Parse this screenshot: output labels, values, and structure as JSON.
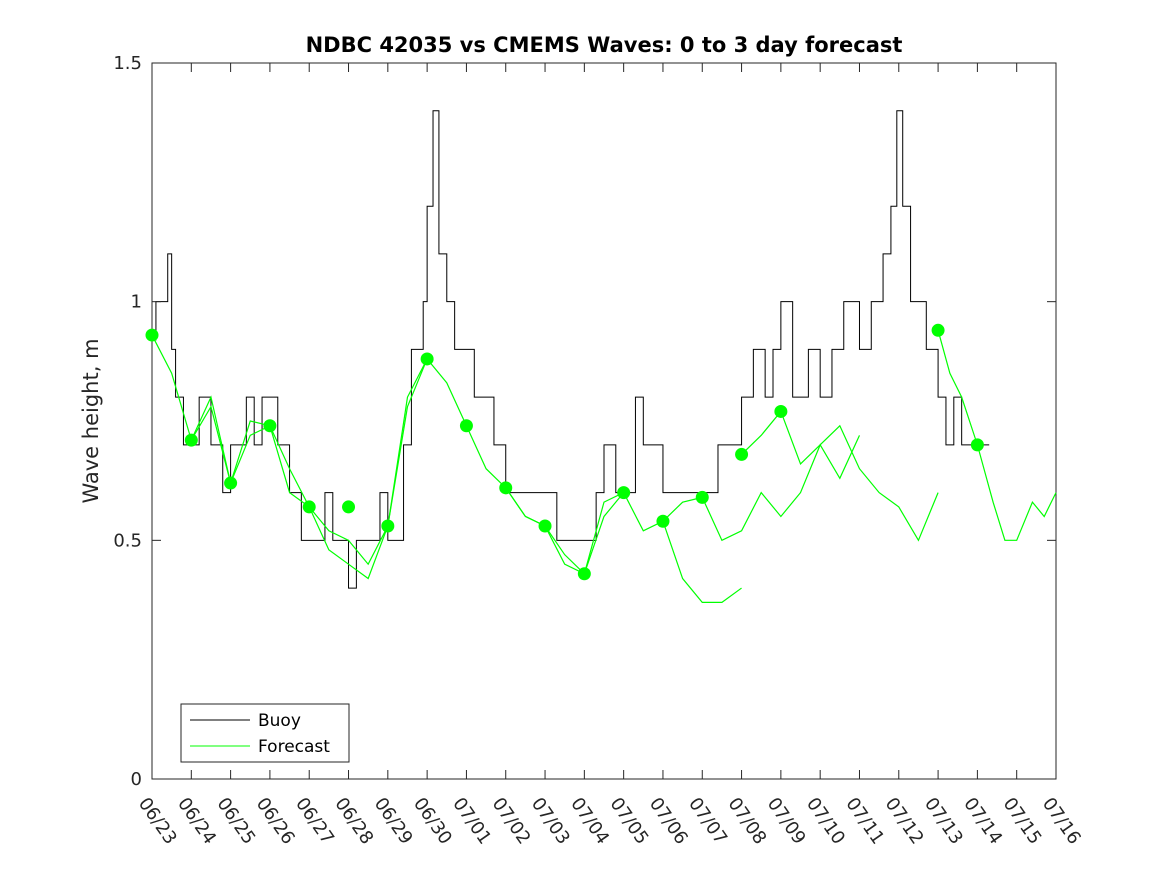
{
  "chart_data": {
    "type": "line",
    "title": "NDBC 42035 vs CMEMS Waves: 0 to 3 day forecast",
    "xlabel": "",
    "ylabel": "Wave height, m",
    "xlim": [
      "06/23",
      "07/16"
    ],
    "ylim": [
      0,
      1.5
    ],
    "yticks": [
      "0",
      "0.5",
      "1",
      "1.5"
    ],
    "xticks": [
      "06/23",
      "06/24",
      "06/25",
      "06/26",
      "06/27",
      "06/28",
      "06/29",
      "06/30",
      "07/01",
      "07/02",
      "07/03",
      "07/04",
      "07/05",
      "07/06",
      "07/07",
      "07/08",
      "07/09",
      "07/10",
      "07/11",
      "07/12",
      "07/13",
      "07/14",
      "07/15",
      "07/16"
    ],
    "grid": false,
    "legend": {
      "placement": "bottom-left",
      "entries": [
        "Buoy",
        "Forecast"
      ]
    },
    "colors": {
      "buoy": "#000000",
      "forecast": "#00ff00",
      "axes": "#262626"
    },
    "series": [
      {
        "name": "Buoy",
        "x_days_from": "06/23",
        "points": [
          [
            0,
            0.92
          ],
          [
            0.1,
            1.0
          ],
          [
            0.4,
            1.0
          ],
          [
            0.4,
            1.1
          ],
          [
            0.5,
            0.9
          ],
          [
            0.6,
            0.8
          ],
          [
            0.8,
            0.7
          ],
          [
            1.0,
            0.7
          ],
          [
            1.2,
            0.8
          ],
          [
            1.4,
            0.8
          ],
          [
            1.5,
            0.7
          ],
          [
            1.8,
            0.6
          ],
          [
            2.0,
            0.7
          ],
          [
            2.4,
            0.8
          ],
          [
            2.6,
            0.7
          ],
          [
            2.8,
            0.8
          ],
          [
            3.0,
            0.8
          ],
          [
            3.2,
            0.7
          ],
          [
            3.5,
            0.6
          ],
          [
            3.8,
            0.5
          ],
          [
            4.2,
            0.5
          ],
          [
            4.4,
            0.6
          ],
          [
            4.6,
            0.5
          ],
          [
            4.9,
            0.5
          ],
          [
            5.0,
            0.4
          ],
          [
            5.2,
            0.5
          ],
          [
            5.5,
            0.5
          ],
          [
            5.8,
            0.6
          ],
          [
            6.0,
            0.5
          ],
          [
            6.2,
            0.5
          ],
          [
            6.3,
            0.5
          ],
          [
            6.4,
            0.7
          ],
          [
            6.6,
            0.9
          ],
          [
            6.9,
            1.0
          ],
          [
            7.0,
            1.2
          ],
          [
            7.15,
            1.4
          ],
          [
            7.3,
            1.1
          ],
          [
            7.5,
            1.0
          ],
          [
            7.7,
            0.9
          ],
          [
            8.0,
            0.9
          ],
          [
            8.2,
            0.8
          ],
          [
            8.5,
            0.8
          ],
          [
            8.7,
            0.7
          ],
          [
            9.0,
            0.6
          ],
          [
            9.3,
            0.6
          ],
          [
            9.6,
            0.6
          ],
          [
            10.0,
            0.6
          ],
          [
            10.3,
            0.5
          ],
          [
            10.6,
            0.5
          ],
          [
            11.0,
            0.5
          ],
          [
            11.3,
            0.6
          ],
          [
            11.5,
            0.7
          ],
          [
            11.8,
            0.6
          ],
          [
            12.0,
            0.6
          ],
          [
            12.3,
            0.8
          ],
          [
            12.5,
            0.7
          ],
          [
            12.8,
            0.7
          ],
          [
            13.0,
            0.6
          ],
          [
            13.4,
            0.6
          ],
          [
            13.8,
            0.6
          ],
          [
            14.0,
            0.6
          ],
          [
            14.4,
            0.7
          ],
          [
            14.7,
            0.7
          ],
          [
            15.0,
            0.8
          ],
          [
            15.3,
            0.9
          ],
          [
            15.6,
            0.8
          ],
          [
            15.8,
            0.9
          ],
          [
            16.0,
            1.0
          ],
          [
            16.3,
            0.8
          ],
          [
            16.7,
            0.9
          ],
          [
            17.0,
            0.8
          ],
          [
            17.3,
            0.9
          ],
          [
            17.6,
            1.0
          ],
          [
            18.0,
            0.9
          ],
          [
            18.3,
            1.0
          ],
          [
            18.6,
            1.1
          ],
          [
            18.8,
            1.2
          ],
          [
            18.95,
            1.4
          ],
          [
            19.1,
            1.2
          ],
          [
            19.3,
            1.0
          ],
          [
            19.5,
            1.0
          ],
          [
            19.7,
            0.9
          ],
          [
            20.0,
            0.8
          ],
          [
            20.2,
            0.7
          ],
          [
            20.4,
            0.8
          ],
          [
            20.6,
            0.7
          ],
          [
            20.8,
            0.7
          ],
          [
            21.0,
            0.7
          ],
          [
            21.3,
            0.7
          ]
        ]
      },
      {
        "name": "Forecast",
        "markers": [
          [
            0,
            0.93
          ],
          [
            1,
            0.71
          ],
          [
            2,
            0.62
          ],
          [
            3,
            0.74
          ],
          [
            4,
            0.57
          ],
          [
            5,
            0.57
          ],
          [
            6,
            0.53
          ],
          [
            7,
            0.88
          ],
          [
            8,
            0.74
          ],
          [
            9,
            0.61
          ],
          [
            10,
            0.53
          ],
          [
            11,
            0.43
          ],
          [
            12,
            0.6
          ],
          [
            13,
            0.54
          ],
          [
            14,
            0.59
          ],
          [
            15,
            0.68
          ],
          [
            16,
            0.77
          ],
          [
            20,
            0.94
          ],
          [
            21,
            0.7
          ]
        ],
        "runs": [
          [
            [
              0,
              0.93
            ],
            [
              0.5,
              0.85
            ],
            [
              1,
              0.71
            ],
            [
              1.5,
              0.8
            ],
            [
              2,
              0.62
            ],
            [
              2.5,
              0.72
            ],
            [
              3,
              0.74
            ],
            [
              3.5,
              0.65
            ],
            [
              4,
              0.57
            ],
            [
              4.5,
              0.52
            ],
            [
              5,
              0.5
            ],
            [
              5.5,
              0.45
            ],
            [
              6,
              0.53
            ]
          ],
          [
            [
              1,
              0.71
            ],
            [
              1.5,
              0.78
            ],
            [
              2,
              0.62
            ],
            [
              2.5,
              0.75
            ],
            [
              3,
              0.74
            ],
            [
              3.5,
              0.6
            ],
            [
              4,
              0.57
            ],
            [
              4.5,
              0.48
            ],
            [
              5,
              0.45
            ],
            [
              5.5,
              0.42
            ],
            [
              6,
              0.53
            ],
            [
              6.5,
              0.78
            ],
            [
              7,
              0.88
            ]
          ],
          [
            [
              6,
              0.53
            ],
            [
              6.5,
              0.8
            ],
            [
              7,
              0.88
            ],
            [
              7.5,
              0.83
            ],
            [
              8,
              0.74
            ],
            [
              8.5,
              0.65
            ],
            [
              9,
              0.61
            ],
            [
              9.5,
              0.55
            ],
            [
              10,
              0.53
            ],
            [
              10.5,
              0.47
            ],
            [
              11,
              0.43
            ],
            [
              11.5,
              0.55
            ],
            [
              12,
              0.6
            ]
          ],
          [
            [
              9,
              0.61
            ],
            [
              9.5,
              0.55
            ],
            [
              10,
              0.53
            ],
            [
              10.5,
              0.45
            ],
            [
              11,
              0.43
            ],
            [
              11.5,
              0.58
            ],
            [
              12,
              0.6
            ],
            [
              12.5,
              0.52
            ],
            [
              13,
              0.54
            ],
            [
              13.5,
              0.42
            ],
            [
              14,
              0.37
            ],
            [
              14.5,
              0.37
            ],
            [
              15,
              0.4
            ]
          ],
          [
            [
              13,
              0.54
            ],
            [
              13.5,
              0.58
            ],
            [
              14,
              0.59
            ],
            [
              14.5,
              0.5
            ],
            [
              15,
              0.52
            ],
            [
              15.5,
              0.6
            ],
            [
              16,
              0.55
            ],
            [
              16.5,
              0.6
            ],
            [
              17,
              0.7
            ],
            [
              17.5,
              0.63
            ],
            [
              18,
              0.72
            ]
          ],
          [
            [
              15,
              0.68
            ],
            [
              15.5,
              0.72
            ],
            [
              16,
              0.77
            ],
            [
              16.5,
              0.66
            ],
            [
              17,
              0.7
            ],
            [
              17.5,
              0.74
            ],
            [
              18,
              0.65
            ],
            [
              18.5,
              0.6
            ],
            [
              19,
              0.57
            ],
            [
              19.5,
              0.5
            ],
            [
              20,
              0.6
            ]
          ],
          [
            [
              20,
              0.94
            ],
            [
              20.3,
              0.85
            ],
            [
              20.6,
              0.8
            ],
            [
              21,
              0.7
            ],
            [
              21.4,
              0.58
            ],
            [
              21.7,
              0.5
            ],
            [
              22,
              0.5
            ],
            [
              22.4,
              0.58
            ],
            [
              22.7,
              0.55
            ],
            [
              23,
              0.6
            ]
          ]
        ]
      }
    ]
  }
}
